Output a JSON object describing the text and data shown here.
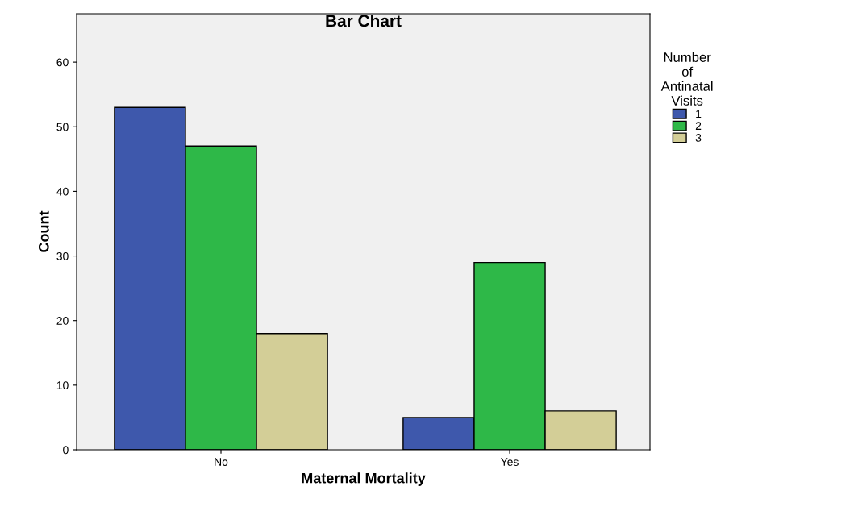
{
  "chart_data": {
    "type": "bar",
    "title": "Bar Chart",
    "xlabel": "Maternal Mortality",
    "ylabel": "Count",
    "legend_title": "Number\nof\nAntinatal\nVisits",
    "categories": [
      "No",
      "Yes"
    ],
    "series": [
      {
        "name": "1",
        "color": "#3e58ac",
        "values": [
          53,
          5
        ]
      },
      {
        "name": "2",
        "color": "#2eb848",
        "values": [
          47,
          29
        ]
      },
      {
        "name": "3",
        "color": "#d3ce97",
        "values": [
          18,
          6
        ]
      }
    ],
    "ylim": [
      0,
      67.5
    ],
    "yticks": [
      0,
      10,
      20,
      30,
      40,
      50,
      60
    ],
    "grid": false,
    "legend": "top right"
  }
}
